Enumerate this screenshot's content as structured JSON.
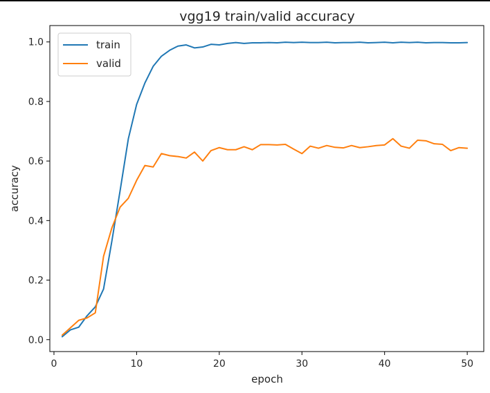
{
  "chart_data": {
    "type": "line",
    "title": "vgg19 train/valid accuracy",
    "xlabel": "epoch",
    "ylabel": "accuracy",
    "xlim": [
      -0.5,
      52.0
    ],
    "ylim": [
      -0.04,
      1.055
    ],
    "xticks": [
      0,
      10,
      20,
      30,
      40,
      50
    ],
    "yticks": [
      0.0,
      0.2,
      0.4,
      0.6,
      0.8,
      1.0
    ],
    "xtick_labels": [
      "0",
      "10",
      "20",
      "30",
      "40",
      "50"
    ],
    "ytick_labels": [
      "0.0",
      "0.2",
      "0.4",
      "0.6",
      "0.8",
      "1.0"
    ],
    "grid": false,
    "legend_position": "top-left",
    "x": [
      1,
      2,
      3,
      4,
      5,
      6,
      7,
      8,
      9,
      10,
      11,
      12,
      13,
      14,
      15,
      16,
      17,
      18,
      19,
      20,
      21,
      22,
      23,
      24,
      25,
      26,
      27,
      28,
      29,
      30,
      31,
      32,
      33,
      34,
      35,
      36,
      37,
      38,
      39,
      40,
      41,
      42,
      43,
      44,
      45,
      46,
      47,
      48,
      49,
      50
    ],
    "series": [
      {
        "name": "train",
        "color": "#1f77b4",
        "values": [
          0.01,
          0.033,
          0.042,
          0.08,
          0.11,
          0.17,
          0.33,
          0.5,
          0.675,
          0.79,
          0.862,
          0.918,
          0.952,
          0.972,
          0.986,
          0.99,
          0.98,
          0.983,
          0.992,
          0.99,
          0.995,
          0.998,
          0.995,
          0.997,
          0.997,
          0.998,
          0.997,
          0.999,
          0.998,
          0.999,
          0.998,
          0.998,
          0.999,
          0.997,
          0.998,
          0.998,
          0.999,
          0.997,
          0.998,
          0.999,
          0.997,
          0.999,
          0.998,
          0.999,
          0.997,
          0.998,
          0.998,
          0.997,
          0.997,
          0.998
        ]
      },
      {
        "name": "valid",
        "color": "#ff7f0e",
        "values": [
          0.015,
          0.04,
          0.065,
          0.073,
          0.09,
          0.28,
          0.375,
          0.445,
          0.475,
          0.535,
          0.585,
          0.58,
          0.625,
          0.618,
          0.615,
          0.61,
          0.63,
          0.6,
          0.635,
          0.645,
          0.638,
          0.638,
          0.648,
          0.638,
          0.655,
          0.655,
          0.654,
          0.656,
          0.64,
          0.625,
          0.65,
          0.643,
          0.652,
          0.646,
          0.644,
          0.652,
          0.645,
          0.648,
          0.652,
          0.654,
          0.675,
          0.65,
          0.643,
          0.67,
          0.668,
          0.658,
          0.656,
          0.635,
          0.645,
          0.643
        ]
      }
    ]
  }
}
